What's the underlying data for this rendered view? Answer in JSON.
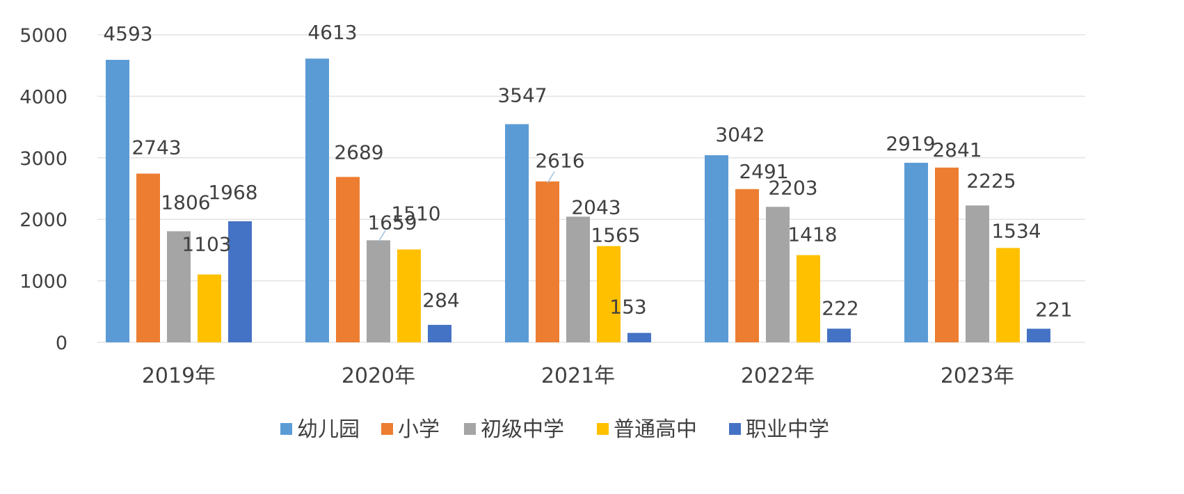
{
  "chart_data": {
    "type": "bar",
    "title": "",
    "xlabel": "",
    "ylabel": "",
    "categories": [
      "2019年",
      "2020年",
      "2021年",
      "2022年",
      "2023年"
    ],
    "series": [
      {
        "name": "幼儿园",
        "color": "#5b9bd5",
        "values": [
          4593,
          4613,
          3547,
          3042,
          2919
        ]
      },
      {
        "name": "小学",
        "color": "#ed7d31",
        "values": [
          2743,
          2689,
          2616,
          2491,
          2841
        ]
      },
      {
        "name": "初级中学",
        "color": "#a5a5a5",
        "values": [
          1806,
          1659,
          2043,
          2203,
          2225
        ]
      },
      {
        "name": "普通高中",
        "color": "#ffc000",
        "values": [
          1103,
          1510,
          1565,
          1418,
          1534
        ]
      },
      {
        "name": "职业中学",
        "color": "#4472c4",
        "values": [
          1968,
          284,
          153,
          222,
          221
        ]
      }
    ],
    "ylim": [
      0,
      5000
    ],
    "yticks": [
      0,
      1000,
      2000,
      3000,
      4000,
      5000
    ],
    "grid": true,
    "legend_position": "bottom",
    "data_labels": true
  }
}
